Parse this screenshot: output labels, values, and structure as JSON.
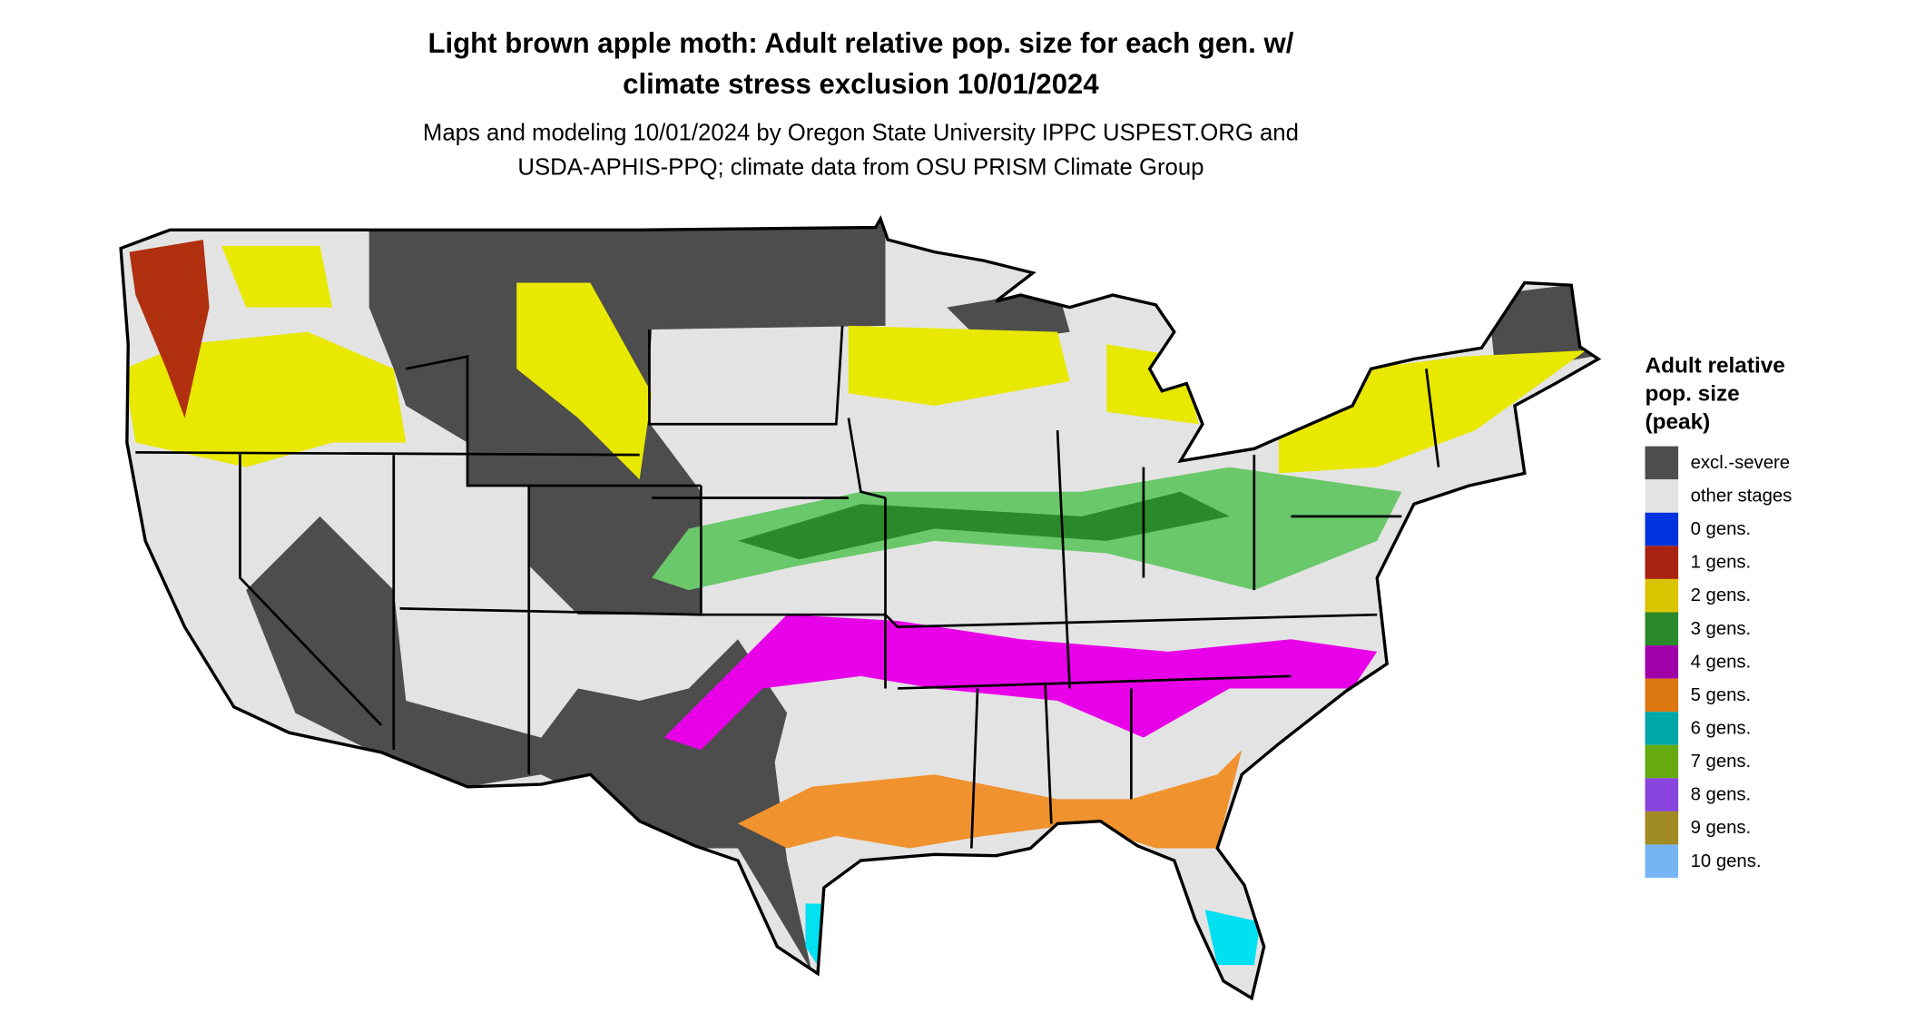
{
  "title": [
    "Light brown apple moth: Adult relative pop. size for each gen. w/",
    "climate stress exclusion 10/01/2024"
  ],
  "subtitle": [
    "Maps and modeling 10/01/2024 by Oregon State University IPPC USPEST.ORG and",
    "USDA-APHIS-PPQ; climate data from OSU PRISM Climate Group"
  ],
  "legend": {
    "title": [
      "Adult relative",
      "pop. size",
      "(peak)"
    ],
    "items": [
      {
        "label": "excl.-severe",
        "color": "#4d4d4d"
      },
      {
        "label": "other stages",
        "color": "#e3e3e3"
      },
      {
        "label": "0 gens.",
        "color": "#0033dd"
      },
      {
        "label": "1 gens.",
        "color": "#aa2211"
      },
      {
        "label": "2 gens.",
        "color": "#d9c400"
      },
      {
        "label": "3 gens.",
        "color": "#2a8a2a"
      },
      {
        "label": "4 gens.",
        "color": "#a000a8"
      },
      {
        "label": "5 gens.",
        "color": "#dd7711"
      },
      {
        "label": "6 gens.",
        "color": "#00a8a8"
      },
      {
        "label": "7 gens.",
        "color": "#66aa11"
      },
      {
        "label": "8 gens.",
        "color": "#8844dd"
      },
      {
        "label": "9 gens.",
        "color": "#a08a22"
      },
      {
        "label": "10 gens.",
        "color": "#77b4f4"
      }
    ]
  }
}
